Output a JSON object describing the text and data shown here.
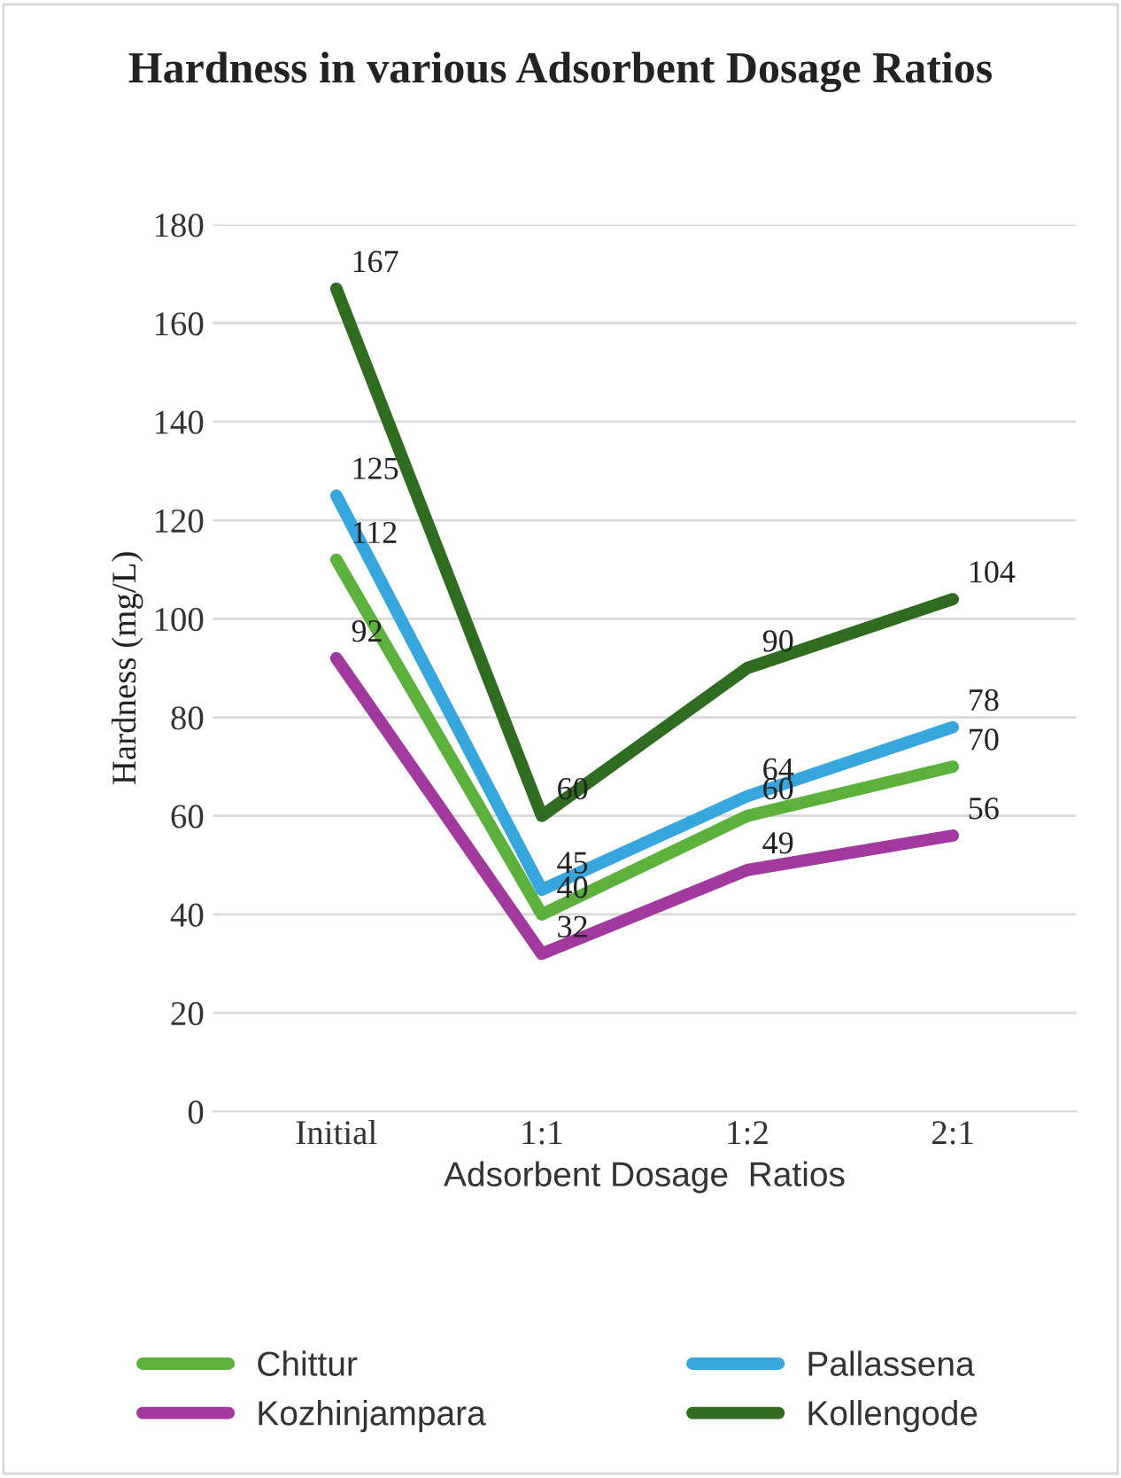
{
  "chart_data": {
    "type": "line",
    "title": "Hardness in various Adsorbent Dosage Ratios",
    "xlabel": "Adsorbent Dosage  Ratios",
    "ylabel": "Hardness (mg/L)",
    "categories": [
      "Initial",
      "1:1",
      "1:2",
      "2:1"
    ],
    "series": [
      {
        "name": "Chittur",
        "color": "#5bb13c",
        "values": [
          112,
          40,
          60,
          70
        ]
      },
      {
        "name": "Kozhinjampara",
        "color": "#a1399f",
        "values": [
          92,
          32,
          49,
          56
        ]
      },
      {
        "name": "Pallassena",
        "color": "#36a6dc",
        "values": [
          125,
          45,
          64,
          78
        ]
      },
      {
        "name": "Kollengode",
        "color": "#2f6b20",
        "values": [
          167,
          60,
          90,
          104
        ]
      }
    ],
    "ylim": [
      0,
      180
    ],
    "yticks": [
      0,
      20,
      40,
      60,
      80,
      100,
      120,
      140,
      160,
      180
    ],
    "grid": "y",
    "legend": "bottom",
    "data_labels": true,
    "marker": "none",
    "line_style": "solid"
  }
}
